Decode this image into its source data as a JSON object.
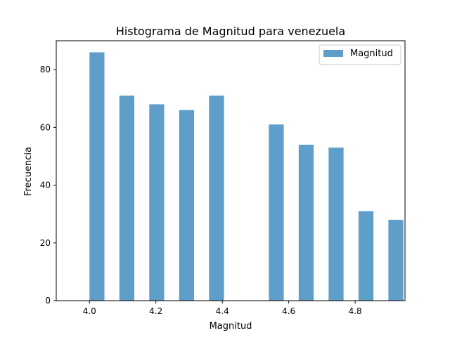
{
  "chart_data": {
    "type": "bar",
    "title": "Histograma de Magnitud para venezuela",
    "xlabel": "Magnitud",
    "ylabel": "Frecuencia",
    "xlim": [
      3.9,
      4.95
    ],
    "ylim": [
      0,
      90
    ],
    "xticks": [
      "4.0",
      "4.2",
      "4.4",
      "4.6",
      "4.8"
    ],
    "xtick_values": [
      4.0,
      4.2,
      4.4,
      4.6,
      4.8
    ],
    "yticks": [
      "0",
      "20",
      "40",
      "60",
      "80"
    ],
    "ytick_values": [
      0,
      20,
      40,
      60,
      80
    ],
    "grid": false,
    "legend_position": "top-right",
    "bar_color": "#5f9ecb",
    "series": [
      {
        "name": "Magnitud",
        "bins": [
          {
            "start": 4.0,
            "end": 4.045,
            "value": 86
          },
          {
            "start": 4.09,
            "end": 4.135,
            "value": 71
          },
          {
            "start": 4.18,
            "end": 4.225,
            "value": 68
          },
          {
            "start": 4.27,
            "end": 4.315,
            "value": 66
          },
          {
            "start": 4.36,
            "end": 4.405,
            "value": 71
          },
          {
            "start": 4.45,
            "end": 4.495,
            "value": 0
          },
          {
            "start": 4.54,
            "end": 4.585,
            "value": 61
          },
          {
            "start": 4.63,
            "end": 4.675,
            "value": 54
          },
          {
            "start": 4.72,
            "end": 4.765,
            "value": 53
          },
          {
            "start": 4.81,
            "end": 4.855,
            "value": 31
          },
          {
            "start": 4.9,
            "end": 4.945,
            "value": 28
          }
        ]
      }
    ]
  }
}
